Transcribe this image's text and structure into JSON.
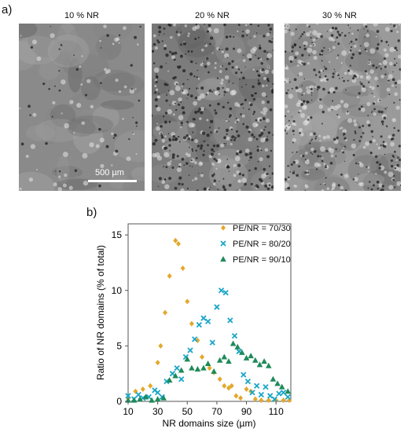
{
  "panel_a": {
    "label": "a)",
    "images": [
      {
        "title": "10 % NR",
        "tone": "#8a8a8a"
      },
      {
        "title": "20 % NR",
        "tone": "#7c7c7c"
      },
      {
        "title": "30 % NR",
        "tone": "#9a9a9a"
      }
    ],
    "scale_label": "500 µm"
  },
  "panel_b": {
    "label": "b)"
  },
  "chart_data": {
    "type": "scatter",
    "xlabel": "NR domains size (µm)",
    "ylabel": "Ratio of NR domains (% of total)",
    "xlim": [
      10,
      120
    ],
    "ylim": [
      0,
      16
    ],
    "xticks": [
      10,
      30,
      50,
      70,
      90,
      110
    ],
    "yticks": [
      0,
      5,
      10,
      15
    ],
    "legend_position": "top-right",
    "series": [
      {
        "name": "PE/NR = 70/30",
        "marker": "diamond",
        "color": "#e3a82a",
        "points": [
          [
            10,
            0.3
          ],
          [
            15,
            0.9
          ],
          [
            20,
            1.1
          ],
          [
            25,
            1.4
          ],
          [
            30,
            3.5
          ],
          [
            32,
            5.0
          ],
          [
            35,
            8.0
          ],
          [
            38,
            11.3
          ],
          [
            42,
            14.5
          ],
          [
            44,
            14.2
          ],
          [
            47,
            12.0
          ],
          [
            50,
            9.0
          ],
          [
            53,
            7.0
          ],
          [
            57,
            5.5
          ],
          [
            60,
            4.0
          ],
          [
            65,
            3.0
          ],
          [
            68,
            2.6
          ],
          [
            72,
            2.0
          ],
          [
            75,
            1.4
          ],
          [
            78,
            1.2
          ],
          [
            80,
            1.4
          ],
          [
            83,
            0.5
          ],
          [
            86,
            0.3
          ],
          [
            90,
            1.1
          ],
          [
            93,
            0.9
          ],
          [
            96,
            0.2
          ],
          [
            100,
            0.1
          ],
          [
            105,
            0.1
          ],
          [
            110,
            0.1
          ],
          [
            115,
            0.1
          ],
          [
            119,
            0.1
          ]
        ]
      },
      {
        "name": "PE/NR = 80/20",
        "marker": "x",
        "color": "#1aa6c8",
        "points": [
          [
            10,
            0.5
          ],
          [
            14,
            0.2
          ],
          [
            17,
            0.6
          ],
          [
            20,
            0.3
          ],
          [
            24,
            0.4
          ],
          [
            28,
            1.0
          ],
          [
            30,
            0.8
          ],
          [
            33,
            0.4
          ],
          [
            36,
            1.8
          ],
          [
            40,
            2.5
          ],
          [
            43,
            3.0
          ],
          [
            46,
            2.0
          ],
          [
            49,
            4.0
          ],
          [
            52,
            4.6
          ],
          [
            55,
            5.6
          ],
          [
            58,
            6.9
          ],
          [
            61,
            7.5
          ],
          [
            64,
            7.2
          ],
          [
            67,
            5.3
          ],
          [
            70,
            8.5
          ],
          [
            73,
            10.0
          ],
          [
            76,
            9.8
          ],
          [
            79,
            7.3
          ],
          [
            82,
            5.9
          ],
          [
            85,
            4.5
          ],
          [
            88,
            2.4
          ],
          [
            91,
            1.8
          ],
          [
            94,
            0.8
          ],
          [
            97,
            1.4
          ],
          [
            100,
            0.6
          ],
          [
            103,
            1.3
          ],
          [
            106,
            0.5
          ],
          [
            109,
            0.2
          ],
          [
            112,
            0.7
          ],
          [
            115,
            0.8
          ],
          [
            118,
            0.4
          ]
        ]
      },
      {
        "name": "PE/NR = 90/10",
        "marker": "triangle",
        "color": "#1f8a5a",
        "points": [
          [
            10,
            0.1
          ],
          [
            14,
            0.1
          ],
          [
            18,
            0.2
          ],
          [
            22,
            0.4
          ],
          [
            26,
            0.1
          ],
          [
            30,
            0.2
          ],
          [
            34,
            0.3
          ],
          [
            38,
            1.9
          ],
          [
            42,
            2.3
          ],
          [
            46,
            2.8
          ],
          [
            50,
            3.8
          ],
          [
            53,
            3.0
          ],
          [
            57,
            2.9
          ],
          [
            61,
            3.0
          ],
          [
            64,
            3.4
          ],
          [
            68,
            2.7
          ],
          [
            72,
            3.7
          ],
          [
            75,
            4.0
          ],
          [
            78,
            3.6
          ],
          [
            81,
            5.2
          ],
          [
            84,
            4.9
          ],
          [
            87,
            4.4
          ],
          [
            90,
            3.9
          ],
          [
            93,
            4.1
          ],
          [
            96,
            3.7
          ],
          [
            99,
            3.3
          ],
          [
            102,
            3.6
          ],
          [
            105,
            3.2
          ],
          [
            108,
            2.0
          ],
          [
            111,
            1.6
          ],
          [
            114,
            1.3
          ],
          [
            118,
            0.9
          ]
        ]
      }
    ]
  }
}
